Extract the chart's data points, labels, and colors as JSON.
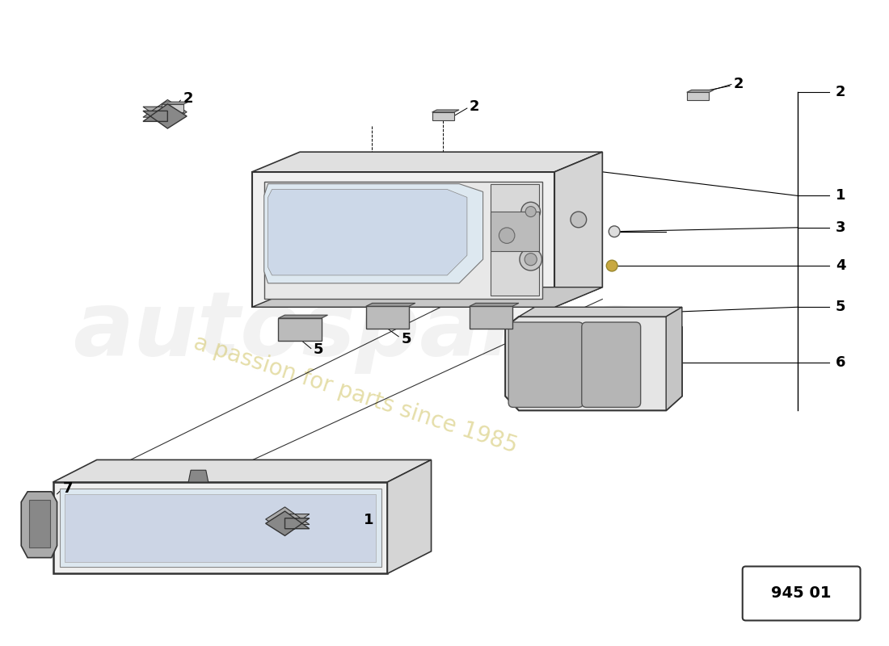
{
  "bg_color": "#ffffff",
  "line_color": "#000000",
  "part_number": "945 01",
  "watermark_text": "a passion for parts since 1985",
  "watermark_color": "#d4c870"
}
